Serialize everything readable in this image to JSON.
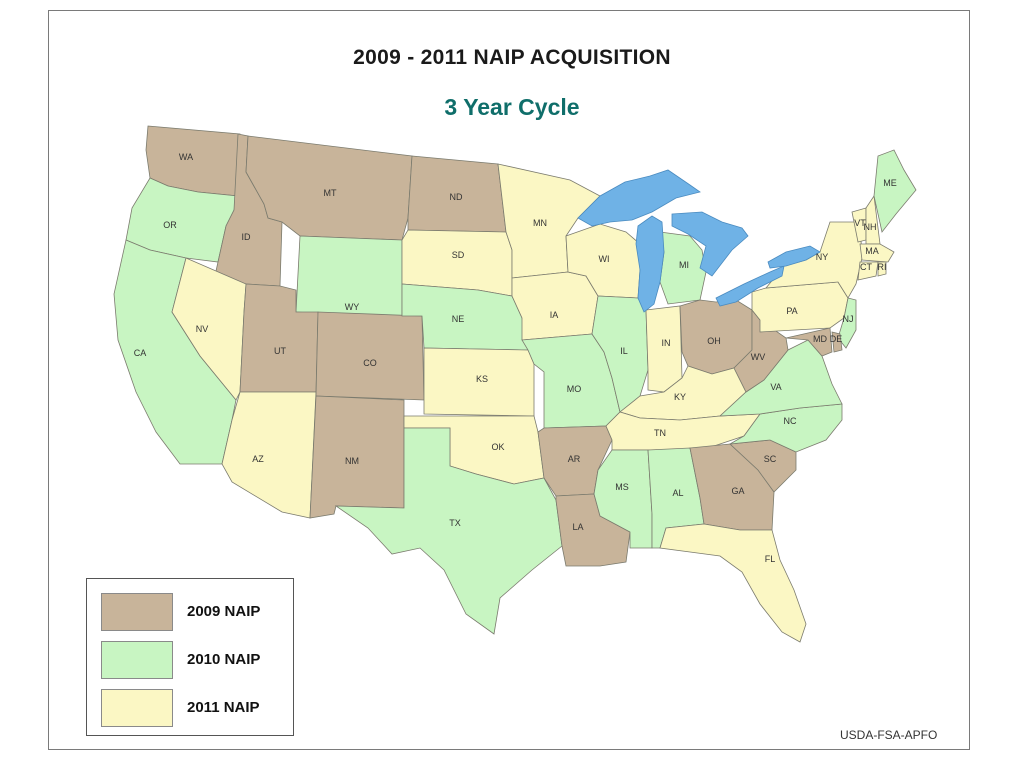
{
  "title": "2009 - 2011 NAIP ACQUISITION",
  "subtitle": "3 Year Cycle",
  "credit": "USDA-FSA-APFO",
  "colors": {
    "y2009": "#c8b49a",
    "y2010": "#c8f5c2",
    "y2011": "#fbf7c4",
    "water": "#6fb2e6",
    "border": "#7b7b6e"
  },
  "legend": [
    {
      "label": "2009 NAIP",
      "year": "2009"
    },
    {
      "label": "2010 NAIP",
      "year": "2010"
    },
    {
      "label": "2011 NAIP",
      "year": "2011"
    }
  ],
  "states": [
    {
      "abbr": "WA",
      "year": "2009"
    },
    {
      "abbr": "OR",
      "year": "2010"
    },
    {
      "abbr": "CA",
      "year": "2010"
    },
    {
      "abbr": "ID",
      "year": "2009"
    },
    {
      "abbr": "NV",
      "year": "2011"
    },
    {
      "abbr": "MT",
      "year": "2009"
    },
    {
      "abbr": "WY",
      "year": "2010"
    },
    {
      "abbr": "UT",
      "year": "2009"
    },
    {
      "abbr": "AZ",
      "year": "2011"
    },
    {
      "abbr": "CO",
      "year": "2009"
    },
    {
      "abbr": "NM",
      "year": "2009"
    },
    {
      "abbr": "ND",
      "year": "2009"
    },
    {
      "abbr": "SD",
      "year": "2011"
    },
    {
      "abbr": "NE",
      "year": "2010"
    },
    {
      "abbr": "KS",
      "year": "2011"
    },
    {
      "abbr": "OK",
      "year": "2011"
    },
    {
      "abbr": "TX",
      "year": "2010"
    },
    {
      "abbr": "MN",
      "year": "2011"
    },
    {
      "abbr": "IA",
      "year": "2011"
    },
    {
      "abbr": "MO",
      "year": "2010"
    },
    {
      "abbr": "AR",
      "year": "2009"
    },
    {
      "abbr": "LA",
      "year": "2009"
    },
    {
      "abbr": "WI",
      "year": "2011"
    },
    {
      "abbr": "IL",
      "year": "2010"
    },
    {
      "abbr": "MI",
      "year": "2010"
    },
    {
      "abbr": "IN",
      "year": "2011"
    },
    {
      "abbr": "OH",
      "year": "2009"
    },
    {
      "abbr": "KY",
      "year": "2011"
    },
    {
      "abbr": "TN",
      "year": "2011"
    },
    {
      "abbr": "MS",
      "year": "2010"
    },
    {
      "abbr": "AL",
      "year": "2010"
    },
    {
      "abbr": "GA",
      "year": "2009"
    },
    {
      "abbr": "FL",
      "year": "2011"
    },
    {
      "abbr": "SC",
      "year": "2009"
    },
    {
      "abbr": "NC",
      "year": "2010"
    },
    {
      "abbr": "VA",
      "year": "2010"
    },
    {
      "abbr": "WV",
      "year": "2009"
    },
    {
      "abbr": "PA",
      "year": "2011"
    },
    {
      "abbr": "NY",
      "year": "2011"
    },
    {
      "abbr": "VT",
      "year": "2011"
    },
    {
      "abbr": "NH",
      "year": "2011"
    },
    {
      "abbr": "ME",
      "year": "2010"
    },
    {
      "abbr": "MA",
      "year": "2011"
    },
    {
      "abbr": "CT",
      "year": "2011"
    },
    {
      "abbr": "RI",
      "year": "2011"
    },
    {
      "abbr": "NJ",
      "year": "2010"
    },
    {
      "abbr": "DE",
      "year": "2009"
    },
    {
      "abbr": "MD",
      "year": "2009"
    }
  ]
}
